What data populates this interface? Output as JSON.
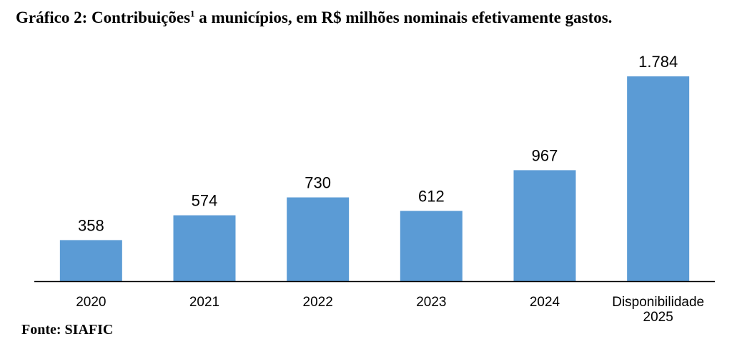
{
  "title": {
    "main": "Gráfico 2: Contribuições",
    "superscript": "1",
    "rest": " a municípios, em R$ milhões nominais efetivamente gastos."
  },
  "source": "Fonte: SIAFIC",
  "chart_data": {
    "type": "bar",
    "categories": [
      "2020",
      "2021",
      "2022",
      "2023",
      "2024",
      "Disponibilidade 2025"
    ],
    "category_lines": [
      [
        "2020"
      ],
      [
        "2021"
      ],
      [
        "2022"
      ],
      [
        "2023"
      ],
      [
        "2024"
      ],
      [
        "Disponibilidade",
        "2025"
      ]
    ],
    "values": [
      358,
      574,
      730,
      612,
      967,
      1784
    ],
    "value_labels": [
      "358",
      "574",
      "730",
      "612",
      "967",
      "1.784"
    ],
    "bar_color": "#5b9bd5",
    "axis_color": "#000000",
    "ylim": [
      0,
      1784
    ],
    "grid": false,
    "legend": "none",
    "xlabel": "",
    "ylabel": ""
  }
}
